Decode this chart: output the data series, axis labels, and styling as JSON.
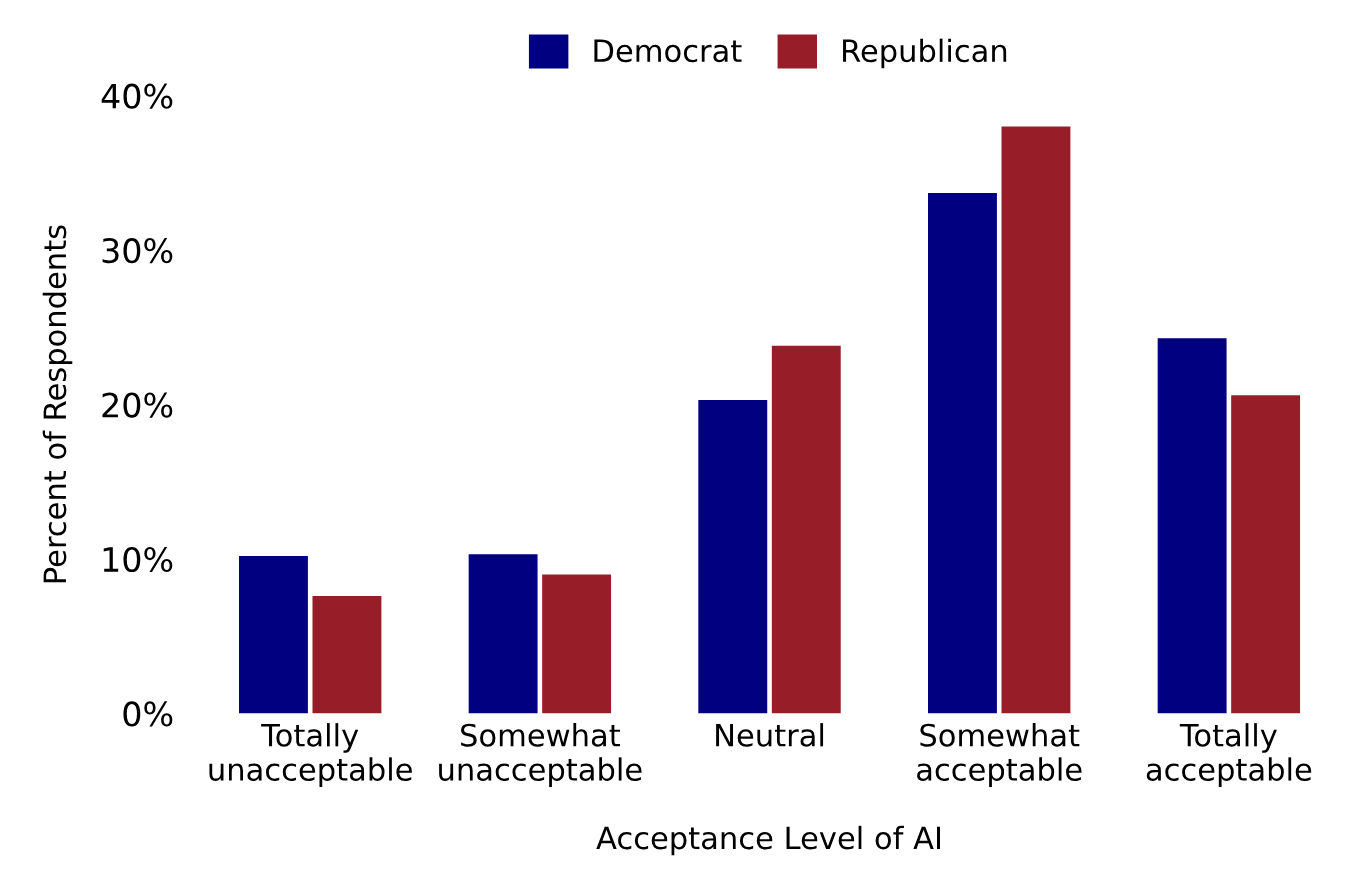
{
  "chart_data": {
    "type": "bar",
    "xlabel": "Acceptance Level of AI",
    "ylabel": "Percent of Respondents",
    "categories": [
      "Totally\nunacceptable",
      "Somewhat\nunacceptable",
      "Neutral",
      "Somewhat\nacceptable",
      "Totally\nacceptable"
    ],
    "series": [
      {
        "name": "Democrat",
        "color": "#000080",
        "values": [
          10.2,
          10.3,
          20.3,
          33.7,
          24.3
        ]
      },
      {
        "name": "Republican",
        "color": "#971e28",
        "values": [
          7.6,
          9.0,
          23.8,
          38.0,
          20.6
        ]
      }
    ],
    "ylim": [
      0,
      40
    ],
    "yticks": [
      {
        "value": 0,
        "label": "0%"
      },
      {
        "value": 10,
        "label": "10%"
      },
      {
        "value": 20,
        "label": "20%"
      },
      {
        "value": 30,
        "label": "30%"
      },
      {
        "value": 40,
        "label": "40%"
      }
    ],
    "grid": false,
    "legend": "top"
  }
}
